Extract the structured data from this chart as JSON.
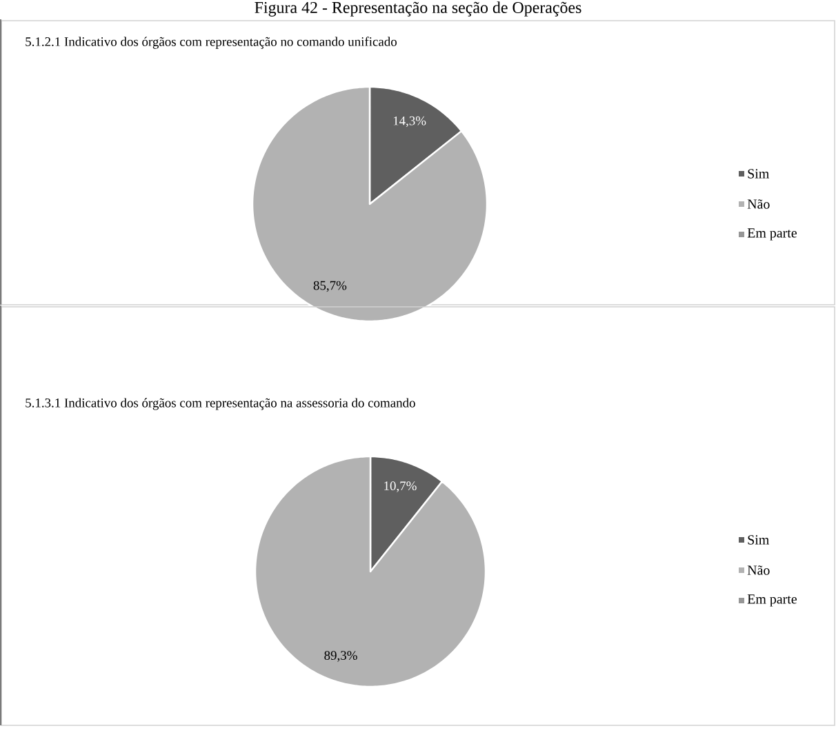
{
  "chart_data": [
    {
      "type": "pie",
      "title": "Figura 42 - Representação na seção de Operações",
      "subtitle": "5.1.2.1 Indicativo dos órgãos com representação no comando  unificado",
      "categories": [
        "Sim",
        "Não",
        "Em parte"
      ],
      "values": [
        14.3,
        85.7,
        0
      ],
      "colors": [
        "#5f5f5f",
        "#b2b2b2",
        "#969696"
      ],
      "value_labels": [
        "14,3%",
        "85,7%",
        null
      ],
      "legend": "right"
    },
    {
      "type": "pie",
      "title": "5.1.3.1 Indicativo dos órgãos com representação na assessoria do comando",
      "categories": [
        "Sim",
        "Não",
        "Em parte"
      ],
      "values": [
        10.7,
        89.3,
        0
      ],
      "colors": [
        "#5f5f5f",
        "#b2b2b2",
        "#969696"
      ],
      "value_labels": [
        "10,7%",
        "89,3%",
        null
      ],
      "legend": "right"
    }
  ]
}
